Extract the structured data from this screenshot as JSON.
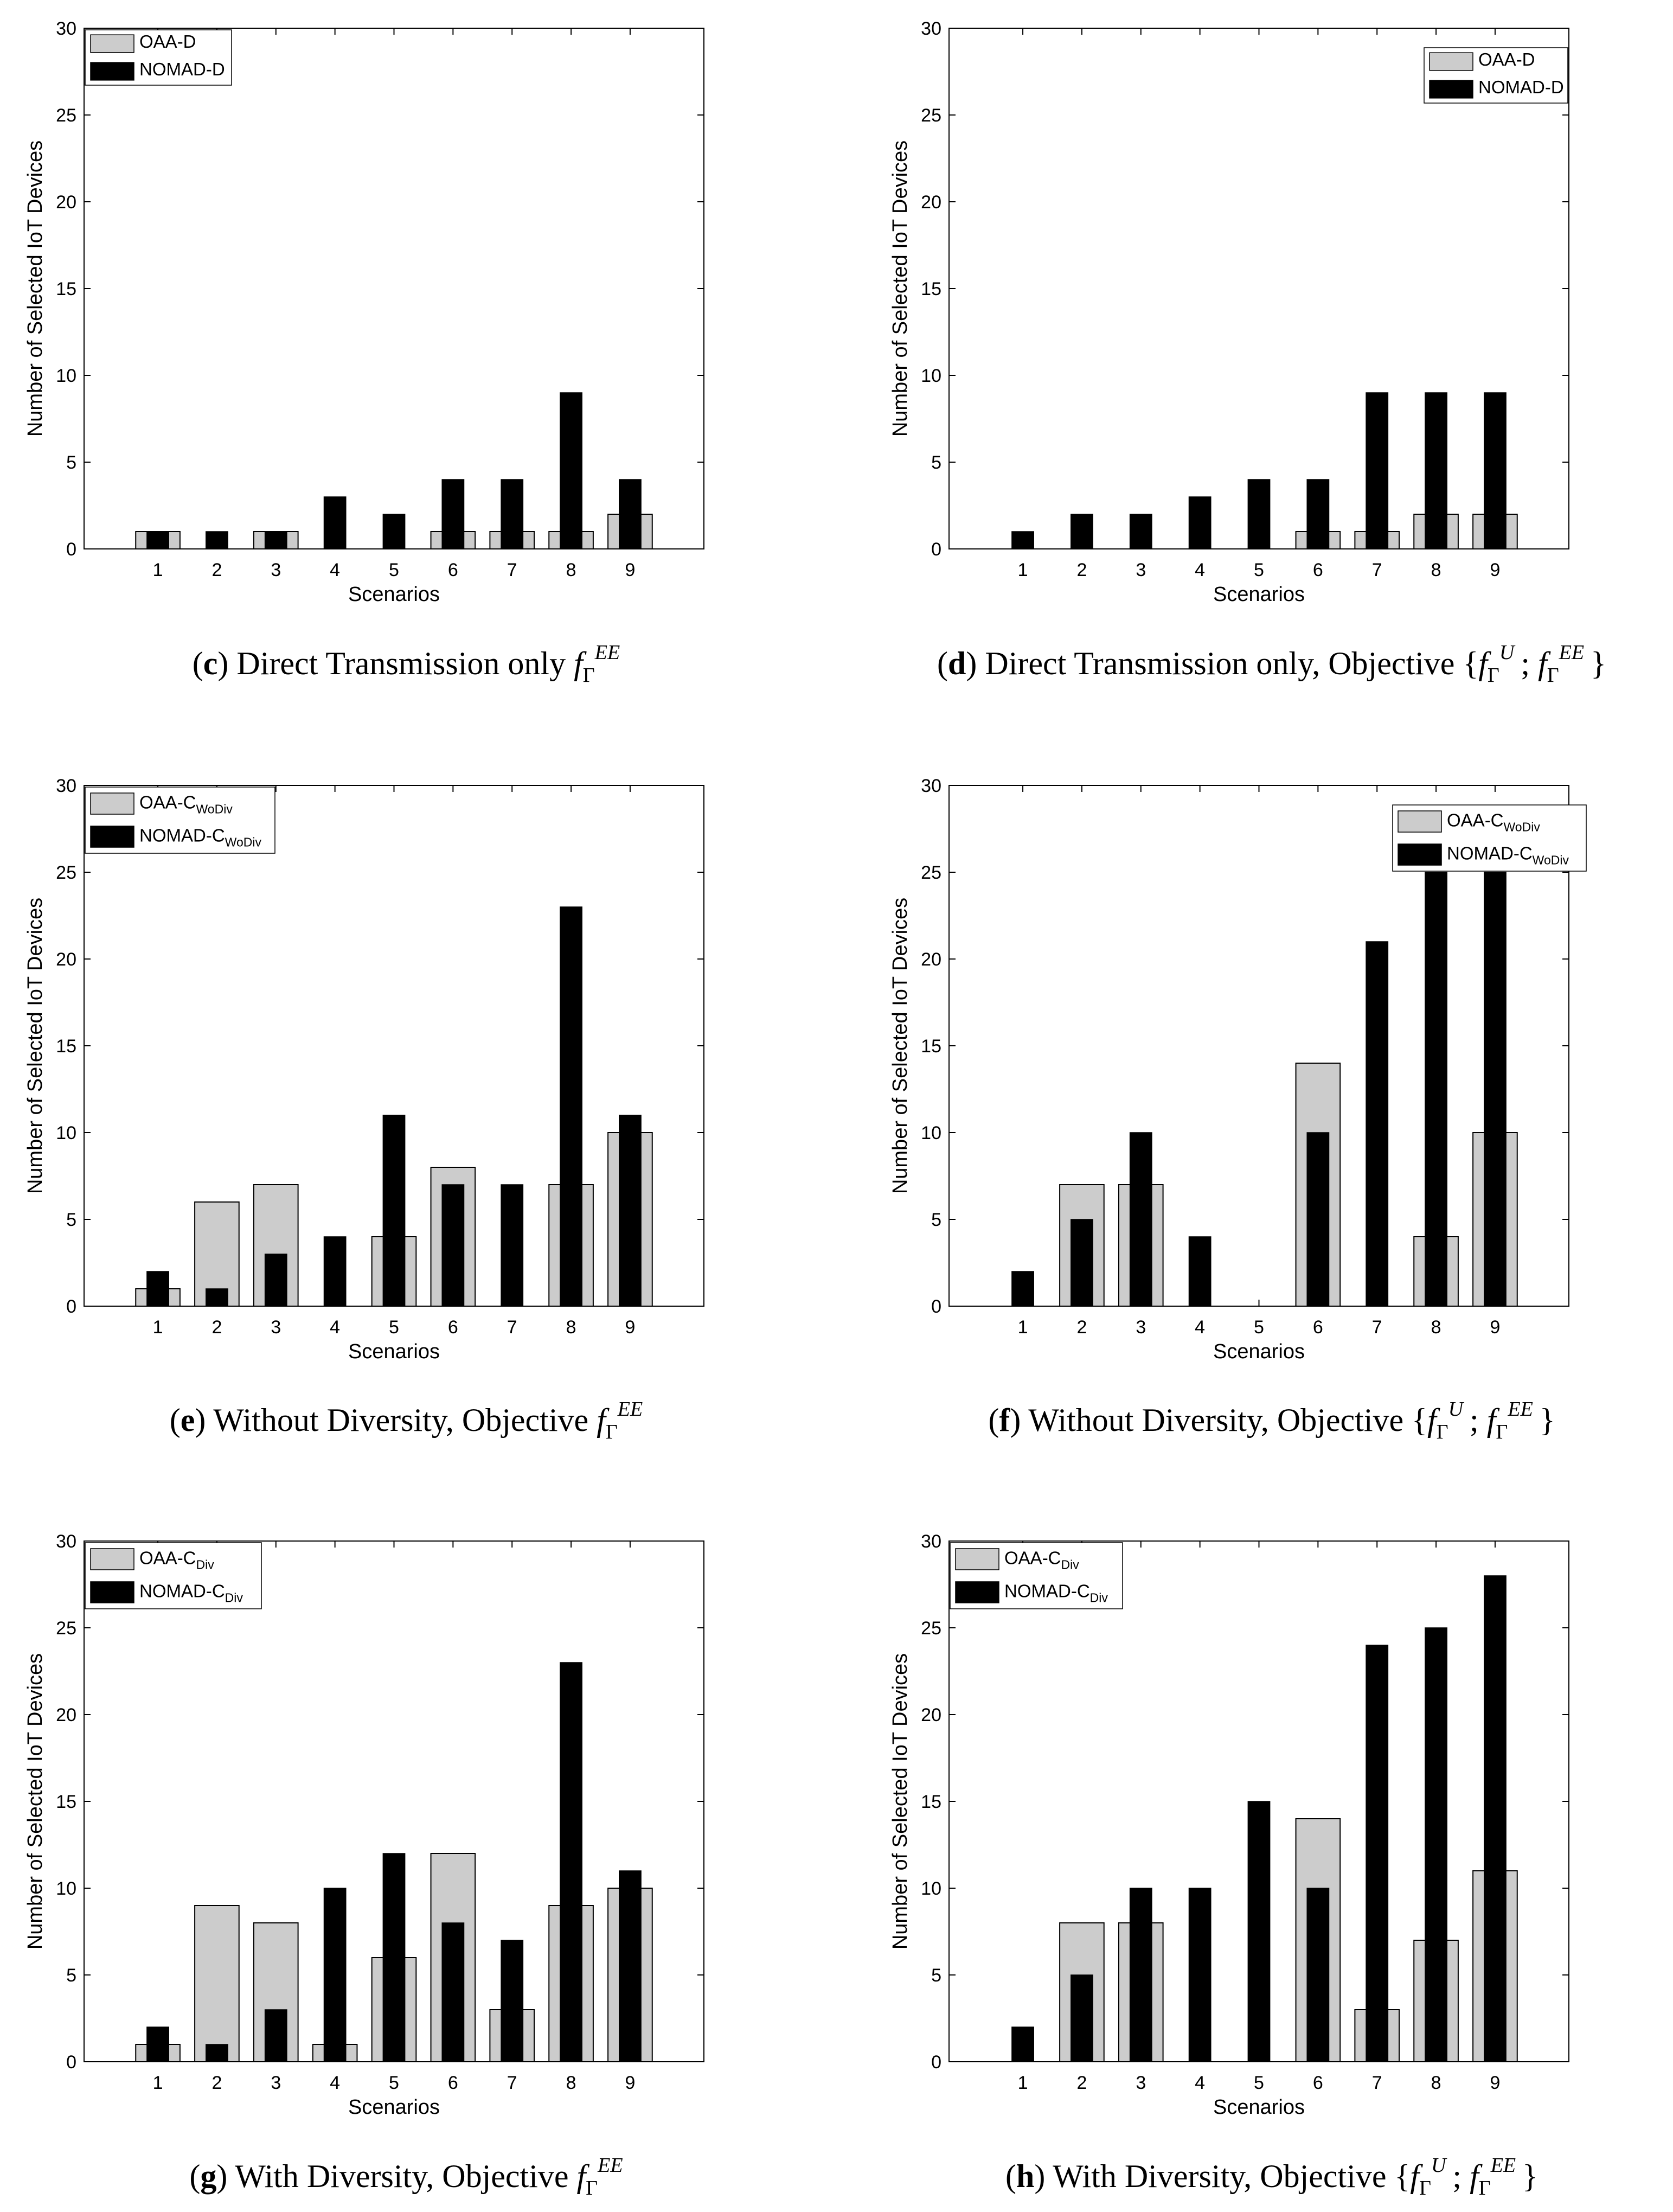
{
  "colors": {
    "oaa": "#cccccc",
    "nomad": "#000000",
    "axis": "#000000"
  },
  "chart_data": [
    {
      "type": "bar",
      "panel": "c",
      "caption": {
        "letter": "c",
        "text": "Direct Transmission only",
        "math": "f_Γ^{EE}"
      },
      "xlabel": "Scenarios",
      "ylabel": "Number of Selected IoT Devices",
      "ylim": [
        0,
        30
      ],
      "yticks": [
        0,
        5,
        10,
        15,
        20,
        25,
        30
      ],
      "categories": [
        "1",
        "2",
        "3",
        "4",
        "5",
        "6",
        "7",
        "8",
        "9"
      ],
      "legend_position": "top-left",
      "series": [
        {
          "name": "OAA-D",
          "base": "OAA-D",
          "sub": "",
          "values": [
            1,
            0,
            1,
            0,
            0,
            1,
            1,
            1,
            2
          ]
        },
        {
          "name": "NOMAD-D",
          "base": "NOMAD-D",
          "sub": "",
          "values": [
            1,
            1,
            1,
            3,
            2,
            4,
            4,
            9,
            4
          ]
        }
      ]
    },
    {
      "type": "bar",
      "panel": "d",
      "caption": {
        "letter": "d",
        "text": "Direct Transmission only, Objective",
        "math": "{f_Γ^U; f_Γ^{EE}}"
      },
      "xlabel": "Scenarios",
      "ylabel": "Number of Selected IoT Devices",
      "ylim": [
        0,
        30
      ],
      "yticks": [
        0,
        5,
        10,
        15,
        20,
        25,
        30
      ],
      "categories": [
        "1",
        "2",
        "3",
        "4",
        "5",
        "6",
        "7",
        "8",
        "9"
      ],
      "legend_position": "top-right",
      "series": [
        {
          "name": "OAA-D",
          "base": "OAA-D",
          "sub": "",
          "values": [
            0,
            0,
            0,
            0,
            0,
            1,
            1,
            2,
            2
          ]
        },
        {
          "name": "NOMAD-D",
          "base": "NOMAD-D",
          "sub": "",
          "values": [
            1,
            2,
            2,
            3,
            4,
            4,
            9,
            9,
            9
          ]
        }
      ]
    },
    {
      "type": "bar",
      "panel": "e",
      "caption": {
        "letter": "e",
        "text": "Without Diversity, Objective",
        "math": "f_Γ^{EE}"
      },
      "xlabel": "Scenarios",
      "ylabel": "Number of Selected IoT Devices",
      "ylim": [
        0,
        30
      ],
      "yticks": [
        0,
        5,
        10,
        15,
        20,
        25,
        30
      ],
      "categories": [
        "1",
        "2",
        "3",
        "4",
        "5",
        "6",
        "7",
        "8",
        "9"
      ],
      "legend_position": "top-left",
      "series": [
        {
          "name": "OAA-C_WoDiv",
          "base": "OAA-C",
          "sub": "WoDiv",
          "values": [
            1,
            6,
            7,
            0,
            4,
            8,
            0,
            7,
            10
          ]
        },
        {
          "name": "NOMAD-C_WoDiv",
          "base": "NOMAD-C",
          "sub": "WoDiv",
          "values": [
            2,
            1,
            3,
            4,
            11,
            7,
            7,
            23,
            11
          ]
        }
      ]
    },
    {
      "type": "bar",
      "panel": "f",
      "caption": {
        "letter": "f",
        "text": "Without Diversity, Objective",
        "math": "{f_Γ^U; f_Γ^{EE}}"
      },
      "xlabel": "Scenarios",
      "ylabel": "Number of Selected IoT Devices",
      "ylim": [
        0,
        30
      ],
      "yticks": [
        0,
        5,
        10,
        15,
        20,
        25,
        30
      ],
      "categories": [
        "1",
        "2",
        "3",
        "4",
        "5",
        "6",
        "7",
        "8",
        "9"
      ],
      "legend_position": "top-right",
      "series": [
        {
          "name": "OAA-C_WoDiv",
          "base": "OAA-C",
          "sub": "WoDiv",
          "values": [
            0,
            7,
            7,
            0,
            0,
            14,
            0,
            4,
            10
          ]
        },
        {
          "name": "NOMAD-C_WoDiv",
          "base": "NOMAD-C",
          "sub": "WoDiv",
          "values": [
            2,
            5,
            10,
            4,
            0,
            10,
            21,
            25,
            25
          ]
        }
      ]
    },
    {
      "type": "bar",
      "panel": "g",
      "caption": {
        "letter": "g",
        "text": "With Diversity, Objective",
        "math": "f_Γ^{EE}"
      },
      "xlabel": "Scenarios",
      "ylabel": "Number of Selected IoT Devices",
      "ylim": [
        0,
        30
      ],
      "yticks": [
        0,
        5,
        10,
        15,
        20,
        25,
        30
      ],
      "categories": [
        "1",
        "2",
        "3",
        "4",
        "5",
        "6",
        "7",
        "8",
        "9"
      ],
      "legend_position": "top-left",
      "series": [
        {
          "name": "OAA-C_Div",
          "base": "OAA-C",
          "sub": "Div",
          "values": [
            1,
            9,
            8,
            1,
            6,
            12,
            3,
            9,
            10
          ]
        },
        {
          "name": "NOMAD-C_Div",
          "base": "NOMAD-C",
          "sub": "Div",
          "values": [
            2,
            1,
            3,
            10,
            12,
            8,
            7,
            23,
            11
          ]
        }
      ]
    },
    {
      "type": "bar",
      "panel": "h",
      "caption": {
        "letter": "h",
        "text": "With Diversity, Objective",
        "math": "{f_Γ^U; f_Γ^{EE}}"
      },
      "xlabel": "Scenarios",
      "ylabel": "Number of Selected IoT Devices",
      "ylim": [
        0,
        30
      ],
      "yticks": [
        0,
        5,
        10,
        15,
        20,
        25,
        30
      ],
      "categories": [
        "1",
        "2",
        "3",
        "4",
        "5",
        "6",
        "7",
        "8",
        "9"
      ],
      "legend_position": "top-left",
      "series": [
        {
          "name": "OAA-C_Div",
          "base": "OAA-C",
          "sub": "Div",
          "values": [
            0,
            8,
            8,
            0,
            0,
            14,
            3,
            7,
            11
          ]
        },
        {
          "name": "NOMAD-C_Div",
          "base": "NOMAD-C",
          "sub": "Div",
          "values": [
            2,
            5,
            10,
            10,
            15,
            10,
            24,
            25,
            28
          ]
        }
      ]
    }
  ]
}
